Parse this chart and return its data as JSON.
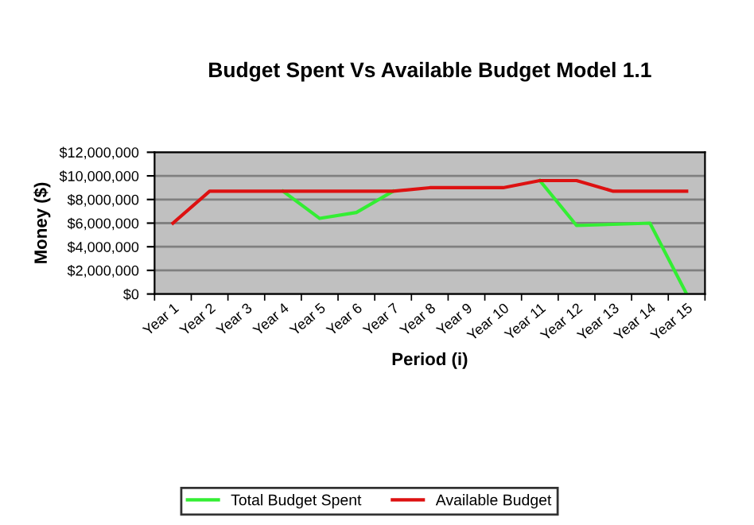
{
  "chart_data": {
    "type": "line",
    "title": "Budget Spent Vs Available Budget Model 1.1",
    "xlabel": "Period (i)",
    "ylabel": "Money ($)",
    "categories": [
      "Year 1",
      "Year 2",
      "Year 3",
      "Year 4",
      "Year 5",
      "Year 6",
      "Year 7",
      "Year 8",
      "Year 9",
      "Year 10",
      "Year 11",
      "Year 12",
      "Year 13",
      "Year 14",
      "Year 15"
    ],
    "series": [
      {
        "name": "Total Budget Spent",
        "color": "#33ee33",
        "values": [
          null,
          null,
          null,
          8700000,
          6400000,
          6900000,
          8700000,
          null,
          null,
          null,
          9600000,
          5800000,
          5900000,
          6000000,
          0
        ]
      },
      {
        "name": "Available Budget",
        "color": "#dd1111",
        "values": [
          6000000,
          8700000,
          8700000,
          8700000,
          8700000,
          8700000,
          8700000,
          9000000,
          9000000,
          9000000,
          9600000,
          9600000,
          8700000,
          8700000,
          8700000
        ]
      }
    ],
    "ylim": [
      0,
      12000000
    ],
    "yticks": [
      {
        "value": 0,
        "label": "$0"
      },
      {
        "value": 2000000,
        "label": "$2,000,000"
      },
      {
        "value": 4000000,
        "label": "$4,000,000"
      },
      {
        "value": 6000000,
        "label": "$6,000,000"
      },
      {
        "value": 8000000,
        "label": "$8,000,000"
      },
      {
        "value": 10000000,
        "label": "$10,000,000"
      },
      {
        "value": 12000000,
        "label": "$12,000,000"
      }
    ],
    "grid": "y",
    "legend": "bottom",
    "marker": "none",
    "line_style": "solid"
  }
}
